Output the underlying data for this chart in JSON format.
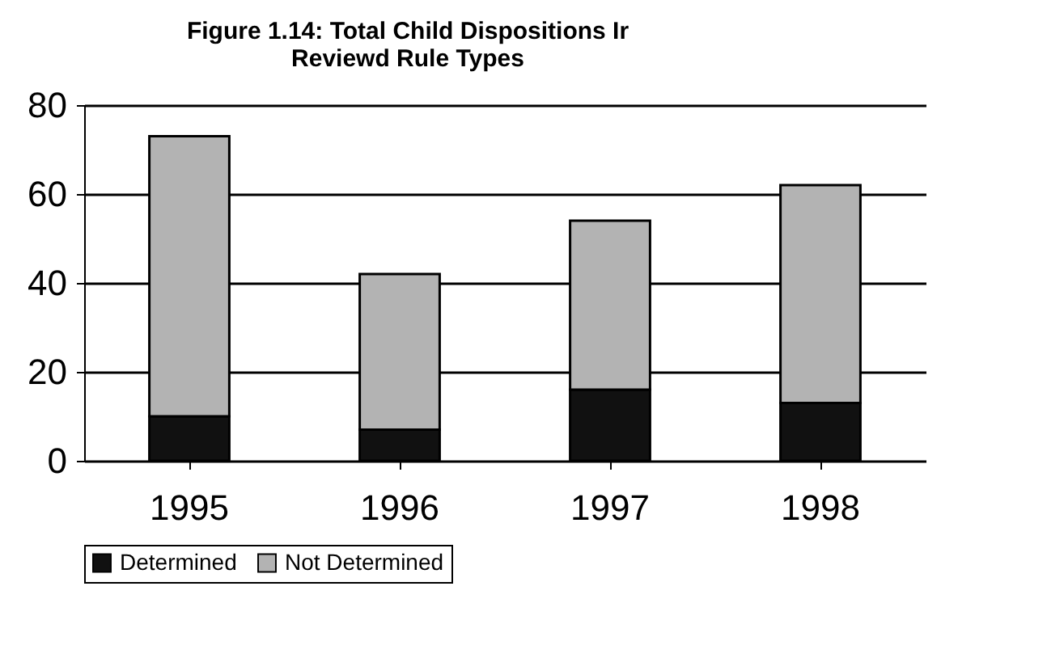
{
  "chart_data": {
    "type": "bar",
    "title": "Figure 1.14: Total Child Dispositions Ir\nReviewd Rule Types",
    "categories": [
      "1995",
      "1996",
      "1997",
      "1998"
    ],
    "stacked": true,
    "series": [
      {
        "name": "Determined",
        "color": "#111111",
        "values": [
          10,
          7,
          16,
          13
        ]
      },
      {
        "name": "Not Determined",
        "color": "#b3b3b3",
        "values": [
          63,
          35,
          38,
          49
        ]
      }
    ],
    "ylim": [
      0,
      80
    ],
    "yticks": [
      0,
      20,
      40,
      60,
      80
    ],
    "grid": "y",
    "legend": "bottom"
  }
}
